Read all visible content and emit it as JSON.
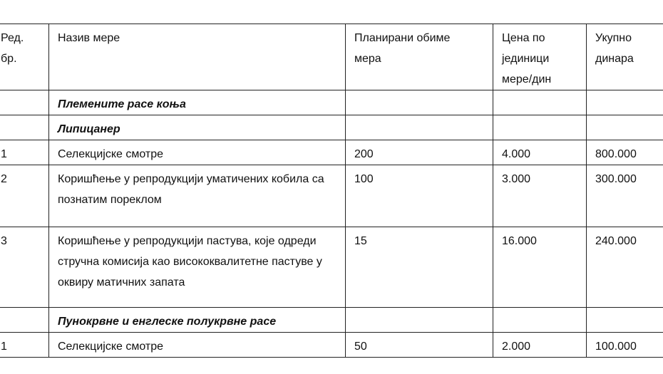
{
  "headers": [
    "Ред. бр.",
    "Назив мере",
    "Планирани обиме мера",
    "Цена по јединици мере/дин",
    "Укупно динара"
  ],
  "header_lines": {
    "col1": [
      "Ред.",
      "бр."
    ],
    "col3": [
      "Планирани обиме",
      "мера"
    ],
    "col4": [
      "Цена по",
      "јединици",
      "мере/дин"
    ],
    "col5": [
      "Укупно",
      "динара"
    ]
  },
  "rows": [
    {
      "no": "",
      "name": "Племените расе коња",
      "qty": "",
      "price": "",
      "total": "",
      "section": true
    },
    {
      "no": "",
      "name": "Липицанер",
      "qty": "",
      "price": "",
      "total": "",
      "section": true
    },
    {
      "no": "1",
      "name": "Селекцијске смотре",
      "qty": "200",
      "price": "4.000",
      "total": "800.000"
    },
    {
      "no": "2",
      "name": "Коришћење у репродукцији уматичених кобила са познатим пореклом",
      "qty": "100",
      "price": "3.000",
      "total": "300.000"
    },
    {
      "no": "3",
      "name": "Коришћење у репродукцији пастува, које одреди стручна комисија као висококвалитетне пастуве у оквиру матичних запата",
      "qty": "15",
      "price": "16.000",
      "total": "240.000"
    },
    {
      "no": "",
      "name": "Пунокрвне и енглеске полукрвне расе",
      "qty": "",
      "price": "",
      "total": "",
      "section": true
    },
    {
      "no": "1",
      "name": "Селекцијске смотре",
      "qty": "50",
      "price": "2.000",
      "total": "100.000"
    }
  ]
}
